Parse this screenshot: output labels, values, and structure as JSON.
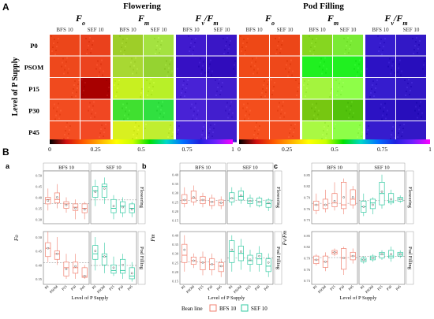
{
  "panelA": {
    "letter": "A",
    "stages": [
      "Flowering",
      "Pod Filling"
    ],
    "params": [
      {
        "main": "F",
        "sub": "o",
        "tail": ""
      },
      {
        "main": "F",
        "sub": "m",
        "tail": ""
      },
      {
        "main": "F",
        "sub": "v",
        "tail": "/F",
        "sub2": "m"
      }
    ],
    "lines": [
      "BFS 10",
      "SEF 10"
    ],
    "ylabel": "Level of P Supply",
    "rows": [
      "P0",
      "PSOM",
      "P15",
      "P30",
      "P45"
    ],
    "colorbar_ticks": [
      "0",
      "0.25",
      "0.5",
      "0.75",
      "1"
    ],
    "colorbar_colors": [
      "#000000",
      "#d01010",
      "#ff5a00",
      "#ffb000",
      "#ffff00",
      "#c8ff00",
      "#00e000",
      "#00d8c8",
      "#0070ff",
      "#2020e0",
      "#7020ff",
      "#ff00ff"
    ],
    "tile_colors": {
      "flowering": {
        "fo": {
          "bfs": "#f04a1e",
          "sef": "#ee4520"
        },
        "fm": {
          "bfs": "#a8d832",
          "sef": "#9ad836"
        },
        "fvfm": {
          "bfs": "#3a14c8",
          "sef": "#3410c0"
        }
      },
      "podfilling": {
        "fo": {
          "bfs": "#f24c1a",
          "sef": "#f04a1c"
        },
        "fm": {
          "bfs": "#90e02a",
          "sef": "#70e02a"
        },
        "fvfm": {
          "bfs": "#3016c8",
          "sef": "#2c12c0"
        }
      }
    }
  },
  "panelB": {
    "letter": "B",
    "subpanels": [
      {
        "letter": "a",
        "ylabel": "Fo",
        "ylabel_sub": "o",
        "ylabel_main": "F",
        "top_ticks": [
          "0.30",
          "0.35",
          "0.40",
          "0.45",
          "0.50"
        ],
        "bottom_ticks": [
          "0.35",
          "0.40",
          "0.45",
          "0.50"
        ]
      },
      {
        "letter": "b",
        "ylabel": "Fm",
        "ylabel_sub": "m",
        "ylabel_main": "F",
        "top_ticks": [
          "0.15",
          "0.20",
          "0.25",
          "0.30",
          "0.35",
          "0.40"
        ],
        "bottom_ticks": [
          "0.15",
          "0.20",
          "0.25",
          "0.30",
          "0.35",
          "0.40"
        ]
      },
      {
        "letter": "c",
        "ylabel": "Fv/Fm",
        "ylabel_sub": "v",
        "ylabel_main": "F",
        "top_ticks": [
          "0.73",
          "0.76",
          "0.79",
          "0.82",
          "0.85"
        ],
        "bottom_ticks": [
          "0.73",
          "0.76",
          "0.79",
          "0.82",
          "0.85"
        ]
      }
    ],
    "facet_titles": [
      "BFS 10",
      "SEF 10"
    ],
    "strip_titles": [
      "Flowering",
      "Pod Filling"
    ],
    "x_categories": [
      "P0",
      "PSOM",
      "P15",
      "P30",
      "P45"
    ],
    "xlabel": "Level of P Supply",
    "legend": {
      "title": "Bean line",
      "items": [
        {
          "label": "BFS 10",
          "color": "#f08070"
        },
        {
          "label": "SEF 10",
          "color": "#30c8a0"
        }
      ]
    }
  },
  "chart_data": [
    {
      "type": "box",
      "panel": "a",
      "stage": "Flowering",
      "line": "BFS 10",
      "categories": [
        "P0",
        "PSOM",
        "P15",
        "P30",
        "P45"
      ],
      "median": [
        0.39,
        0.39,
        0.37,
        0.355,
        0.35
      ],
      "q1": [
        0.37,
        0.375,
        0.35,
        0.34,
        0.33
      ],
      "q3": [
        0.4,
        0.42,
        0.38,
        0.37,
        0.37
      ],
      "min": [
        0.34,
        0.35,
        0.33,
        0.3,
        0.3
      ],
      "max": [
        0.44,
        0.46,
        0.4,
        0.39,
        0.38
      ],
      "mean": [
        0.385,
        0.4,
        0.365,
        0.35,
        0.345
      ],
      "ylim": [
        0.28,
        0.52
      ]
    },
    {
      "type": "box",
      "panel": "a",
      "stage": "Flowering",
      "line": "SEF 10",
      "categories": [
        "P0",
        "PSOM",
        "P15",
        "P30",
        "P45"
      ],
      "median": [
        0.43,
        0.45,
        0.35,
        0.36,
        0.35
      ],
      "q1": [
        0.4,
        0.4,
        0.33,
        0.33,
        0.33
      ],
      "q3": [
        0.45,
        0.46,
        0.39,
        0.38,
        0.37
      ],
      "min": [
        0.36,
        0.37,
        0.3,
        0.31,
        0.31
      ],
      "max": [
        0.48,
        0.49,
        0.41,
        0.4,
        0.38
      ],
      "mean": [
        0.425,
        0.44,
        0.36,
        0.355,
        0.345
      ],
      "ylim": [
        0.28,
        0.52
      ]
    },
    {
      "type": "box",
      "panel": "a",
      "stage": "Pod Filling",
      "line": "BFS 10",
      "categories": [
        "P0",
        "PSOM",
        "P15",
        "P30",
        "P45"
      ],
      "median": [
        0.46,
        0.44,
        0.39,
        0.39,
        0.36
      ],
      "q1": [
        0.43,
        0.42,
        0.36,
        0.37,
        0.355
      ],
      "q3": [
        0.48,
        0.45,
        0.41,
        0.41,
        0.39
      ],
      "min": [
        0.41,
        0.4,
        0.35,
        0.35,
        0.35
      ],
      "max": [
        0.52,
        0.5,
        0.44,
        0.44,
        0.4
      ],
      "mean": [
        0.46,
        0.44,
        0.385,
        0.395,
        0.36
      ],
      "ylim": [
        0.33,
        0.52
      ]
    },
    {
      "type": "box",
      "panel": "a",
      "stage": "Pod Filling",
      "line": "SEF 10",
      "categories": [
        "P0",
        "PSOM",
        "P15",
        "P30",
        "P45"
      ],
      "median": [
        0.44,
        0.43,
        0.38,
        0.38,
        0.36
      ],
      "q1": [
        0.42,
        0.4,
        0.37,
        0.37,
        0.35
      ],
      "q3": [
        0.47,
        0.44,
        0.4,
        0.42,
        0.39
      ],
      "min": [
        0.38,
        0.37,
        0.36,
        0.35,
        0.34
      ],
      "max": [
        0.5,
        0.48,
        0.43,
        0.44,
        0.41
      ],
      "mean": [
        0.45,
        0.43,
        0.39,
        0.4,
        0.37
      ],
      "ylim": [
        0.33,
        0.52
      ]
    },
    {
      "type": "box",
      "panel": "b",
      "stage": "Flowering",
      "line": "BFS 10",
      "categories": [
        "P0",
        "PSOM",
        "P15",
        "P30",
        "P45"
      ],
      "median": [
        0.26,
        0.27,
        0.26,
        0.25,
        0.245
      ],
      "q1": [
        0.24,
        0.25,
        0.24,
        0.23,
        0.23
      ],
      "q3": [
        0.29,
        0.31,
        0.28,
        0.27,
        0.26
      ],
      "min": [
        0.22,
        0.23,
        0.22,
        0.21,
        0.21
      ],
      "max": [
        0.33,
        0.34,
        0.3,
        0.29,
        0.28
      ],
      "mean": [
        0.26,
        0.275,
        0.26,
        0.25,
        0.245
      ],
      "ylim": [
        0.13,
        0.42
      ]
    },
    {
      "type": "box",
      "panel": "b",
      "stage": "Flowering",
      "line": "SEF 10",
      "categories": [
        "P0",
        "PSOM",
        "P15",
        "P30",
        "P45"
      ],
      "median": [
        0.27,
        0.28,
        0.255,
        0.25,
        0.24
      ],
      "q1": [
        0.25,
        0.26,
        0.24,
        0.23,
        0.22
      ],
      "q3": [
        0.3,
        0.31,
        0.27,
        0.27,
        0.26
      ],
      "min": [
        0.23,
        0.24,
        0.22,
        0.22,
        0.2
      ],
      "max": [
        0.33,
        0.33,
        0.29,
        0.28,
        0.27
      ],
      "mean": [
        0.27,
        0.285,
        0.255,
        0.25,
        0.245
      ],
      "ylim": [
        0.13,
        0.42
      ]
    },
    {
      "type": "box",
      "panel": "b",
      "stage": "Pod Filling",
      "line": "BFS 10",
      "categories": [
        "P0",
        "PSOM",
        "P15",
        "P30",
        "P45"
      ],
      "median": [
        0.29,
        0.26,
        0.25,
        0.24,
        0.23
      ],
      "q1": [
        0.25,
        0.24,
        0.21,
        0.21,
        0.2
      ],
      "q3": [
        0.35,
        0.28,
        0.28,
        0.27,
        0.25
      ],
      "min": [
        0.2,
        0.22,
        0.18,
        0.18,
        0.17
      ],
      "max": [
        0.4,
        0.3,
        0.31,
        0.3,
        0.27
      ],
      "mean": [
        0.32,
        0.26,
        0.25,
        0.24,
        0.23
      ],
      "ylim": [
        0.13,
        0.42
      ]
    },
    {
      "type": "box",
      "panel": "b",
      "stage": "Pod Filling",
      "line": "SEF 10",
      "categories": [
        "P0",
        "PSOM",
        "P15",
        "P30",
        "P45"
      ],
      "median": [
        0.31,
        0.3,
        0.26,
        0.27,
        0.23
      ],
      "q1": [
        0.25,
        0.26,
        0.24,
        0.24,
        0.2
      ],
      "q3": [
        0.37,
        0.34,
        0.29,
        0.3,
        0.27
      ],
      "min": [
        0.2,
        0.21,
        0.2,
        0.2,
        0.17
      ],
      "max": [
        0.4,
        0.38,
        0.32,
        0.34,
        0.3
      ],
      "mean": [
        0.32,
        0.31,
        0.265,
        0.285,
        0.25
      ],
      "ylim": [
        0.13,
        0.42
      ]
    },
    {
      "type": "box",
      "panel": "c",
      "stage": "Flowering",
      "line": "BFS 10",
      "categories": [
        "P0",
        "PSOM",
        "P15",
        "P30",
        "P45"
      ],
      "median": [
        0.77,
        0.77,
        0.775,
        0.77,
        0.785
      ],
      "q1": [
        0.755,
        0.76,
        0.765,
        0.76,
        0.77
      ],
      "q3": [
        0.78,
        0.785,
        0.8,
        0.83,
        0.81
      ],
      "min": [
        0.745,
        0.75,
        0.755,
        0.745,
        0.76
      ],
      "max": [
        0.8,
        0.81,
        0.83,
        0.84,
        0.82
      ],
      "mean": [
        0.77,
        0.77,
        0.78,
        0.79,
        0.79
      ],
      "ylim": [
        0.72,
        0.86
      ]
    },
    {
      "type": "box",
      "panel": "c",
      "stage": "Flowering",
      "line": "SEF 10",
      "categories": [
        "P0",
        "PSOM",
        "P15",
        "P30",
        "P45"
      ],
      "median": [
        0.765,
        0.775,
        0.8,
        0.78,
        0.785
      ],
      "q1": [
        0.75,
        0.76,
        0.77,
        0.775,
        0.78
      ],
      "q3": [
        0.78,
        0.785,
        0.83,
        0.8,
        0.79
      ],
      "min": [
        0.74,
        0.745,
        0.76,
        0.77,
        0.775
      ],
      "max": [
        0.8,
        0.79,
        0.85,
        0.81,
        0.795
      ],
      "mean": [
        0.765,
        0.77,
        0.805,
        0.785,
        0.785
      ],
      "ylim": [
        0.72,
        0.86
      ]
    },
    {
      "type": "box",
      "panel": "c",
      "stage": "Pod Filling",
      "line": "BFS 10",
      "categories": [
        "P0",
        "PSOM",
        "P15",
        "P30",
        "P45"
      ],
      "median": [
        0.785,
        0.78,
        0.805,
        0.79,
        0.795
      ],
      "q1": [
        0.775,
        0.765,
        0.8,
        0.76,
        0.785
      ],
      "q3": [
        0.795,
        0.795,
        0.81,
        0.815,
        0.805
      ],
      "min": [
        0.77,
        0.755,
        0.795,
        0.745,
        0.775
      ],
      "max": [
        0.8,
        0.805,
        0.815,
        0.82,
        0.815
      ],
      "mean": [
        0.785,
        0.78,
        0.805,
        0.79,
        0.795
      ],
      "ylim": [
        0.72,
        0.86
      ]
    },
    {
      "type": "box",
      "panel": "c",
      "stage": "Pod Filling",
      "line": "SEF 10",
      "categories": [
        "P0",
        "PSOM",
        "P15",
        "P30",
        "P45"
      ],
      "median": [
        0.785,
        0.79,
        0.8,
        0.795,
        0.8
      ],
      "q1": [
        0.78,
        0.785,
        0.79,
        0.79,
        0.795
      ],
      "q3": [
        0.79,
        0.795,
        0.805,
        0.81,
        0.805
      ],
      "min": [
        0.775,
        0.78,
        0.785,
        0.78,
        0.79
      ],
      "max": [
        0.795,
        0.8,
        0.81,
        0.82,
        0.81
      ],
      "mean": [
        0.785,
        0.79,
        0.8,
        0.8,
        0.8
      ],
      "ylim": [
        0.72,
        0.86
      ]
    }
  ]
}
